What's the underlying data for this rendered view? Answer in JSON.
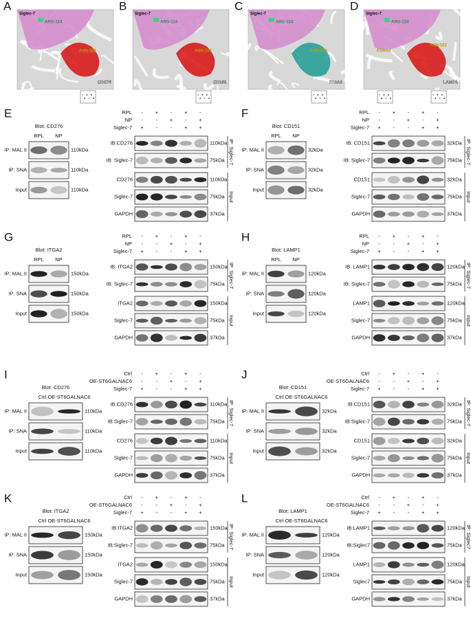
{
  "structures": [
    {
      "letter": "A",
      "receptor": "Siglec-7",
      "residue": "ARG-124",
      "sites": [
        "ASN-322"
      ],
      "ligand": "CD276"
    },
    {
      "letter": "B",
      "receptor": "Siglec-7",
      "residue": "ARG-124",
      "sites": [
        "ASN-159"
      ],
      "ligand": "CD151"
    },
    {
      "letter": "C",
      "receptor": "Siglec-7",
      "residue": "ARG-124",
      "sites": [
        "ASN-343"
      ],
      "ligand": "ITGA2"
    },
    {
      "letter": "D",
      "receptor": "Siglec-7",
      "residue": "ARG-124",
      "sites": [
        "ASN-94",
        "ASN-103"
      ],
      "ligand": "LAMP1"
    }
  ],
  "panels": [
    {
      "letter": "E",
      "blot_title": "Blot: CD276",
      "columns": [
        "RPL",
        "NP"
      ],
      "left_rows": [
        {
          "label": "IP: MAL II",
          "size": "110kDa"
        },
        {
          "label": "IP: SNA",
          "size": "110kDa"
        },
        {
          "label": "Input",
          "size": "110kDa"
        }
      ],
      "conditions": [
        {
          "name": "RPL",
          "signs": [
            "-",
            "+",
            "-",
            "+",
            "-"
          ]
        },
        {
          "name": "NP",
          "signs": [
            "-",
            "-",
            "+",
            "-",
            "+"
          ]
        },
        {
          "name": "Siglec-7",
          "signs": [
            "+",
            "-",
            "-",
            "+",
            "+"
          ]
        }
      ],
      "right_rows": [
        {
          "label": "IB:CD276",
          "size": "110kDa"
        },
        {
          "label": "IB: Siglec-7",
          "size": "75kDa"
        },
        {
          "label": "CD276",
          "size": "110kDa"
        },
        {
          "label": "Siglec-7",
          "size": "75kDa"
        },
        {
          "label": "GAPDH",
          "size": "37kDa"
        }
      ],
      "groups": [
        "IP: Siglec-7",
        "Input"
      ]
    },
    {
      "letter": "F",
      "blot_title": "Blot: CD151",
      "columns": [
        "RPL",
        "NP"
      ],
      "left_rows": [
        {
          "label": "IP: MAL II",
          "size": "32kDa"
        },
        {
          "label": "IP: SNA",
          "size": "32kDa"
        },
        {
          "label": "Input",
          "size": "32kDa"
        }
      ],
      "conditions": [
        {
          "name": "RPL",
          "signs": [
            "-",
            "+",
            "-",
            "+",
            "-"
          ]
        },
        {
          "name": "NP",
          "signs": [
            "-",
            "-",
            "+",
            "-",
            "+"
          ]
        },
        {
          "name": "Siglec-7",
          "signs": [
            "+",
            "-",
            "-",
            "+",
            "+"
          ]
        }
      ],
      "right_rows": [
        {
          "label": "IB: CD151",
          "size": "32kDa"
        },
        {
          "label": "IB: Siglec-7",
          "size": "75kDa"
        },
        {
          "label": "CD151",
          "size": "32kDa"
        },
        {
          "label": "Siglec-7",
          "size": "75kDa"
        },
        {
          "label": "GAPDH",
          "size": "37kDa"
        }
      ],
      "groups": [
        "IP: Siglec-7",
        "Input"
      ]
    },
    {
      "letter": "G",
      "blot_title": "Blot: ITGA2",
      "columns": [
        "RPL",
        "NP"
      ],
      "left_rows": [
        {
          "label": "IP: MAL II",
          "size": "150kDa"
        },
        {
          "label": "IP: SNA",
          "size": "150kDa"
        },
        {
          "label": "Input",
          "size": "150kDa"
        }
      ],
      "conditions": [
        {
          "name": "RPL",
          "signs": [
            "-",
            "+",
            "-",
            "+",
            "-"
          ]
        },
        {
          "name": "NP",
          "signs": [
            "-",
            "-",
            "+",
            "-",
            "+"
          ]
        },
        {
          "name": "Siglec-7",
          "signs": [
            "+",
            "-",
            "-",
            "+",
            "+"
          ]
        }
      ],
      "right_rows": [
        {
          "label": "IB: ITGA2",
          "size": "150kDa"
        },
        {
          "label": "IB: Siglec-7",
          "size": "75kDa"
        },
        {
          "label": "ITGA2",
          "size": "150kDa"
        },
        {
          "label": "Siglec-7",
          "size": "75kDa"
        },
        {
          "label": "GAPDH",
          "size": "37kDa"
        }
      ],
      "groups": [
        "IP: Siglec-7",
        "Input"
      ]
    },
    {
      "letter": "H",
      "blot_title": "Blot: LAMP1",
      "columns": [
        "RPL",
        "NP"
      ],
      "left_rows": [
        {
          "label": "IP: MAL II",
          "size": "120kDa"
        },
        {
          "label": "IP: SNA",
          "size": "120kDa"
        },
        {
          "label": "Input",
          "size": "120kDa"
        }
      ],
      "conditions": [
        {
          "name": "RPL",
          "signs": [
            "-",
            "+",
            "-",
            "+",
            "-"
          ]
        },
        {
          "name": "NP",
          "signs": [
            "-",
            "-",
            "+",
            "-",
            "+"
          ]
        },
        {
          "name": "Siglec-7",
          "signs": [
            "+",
            "-",
            "-",
            "+",
            "+"
          ]
        }
      ],
      "right_rows": [
        {
          "label": "IB: LAMP1",
          "size": "120kDa"
        },
        {
          "label": "IB: Siglec-7",
          "size": "75kDa"
        },
        {
          "label": "LAMP1",
          "size": "120kDa"
        },
        {
          "label": "Siglec-7",
          "size": "75kDa"
        },
        {
          "label": "GAPDH",
          "size": "37kDa"
        }
      ],
      "groups": [
        "IP: Siglec-7",
        "Input"
      ]
    },
    {
      "letter": "I",
      "blot_title": "Blot: CD276",
      "columns": [
        "Ctrl",
        "OE-ST6GALNAC6"
      ],
      "left_rows": [
        {
          "label": "IP: MAL II",
          "size": "110kDa"
        },
        {
          "label": "IP: SNA",
          "size": "110kDa"
        },
        {
          "label": "Input",
          "size": "110kDa"
        }
      ],
      "conditions": [
        {
          "name": "Ctrl",
          "signs": [
            "-",
            "+",
            "-",
            "+",
            "-"
          ]
        },
        {
          "name": "OE-ST6GALNAC6",
          "signs": [
            "-",
            "-",
            "+",
            "-",
            "+"
          ]
        },
        {
          "name": "Siglec-7",
          "signs": [
            "+",
            "-",
            "-",
            "+",
            "+"
          ]
        }
      ],
      "right_rows": [
        {
          "label": "IB:CD276",
          "size": "110kDa"
        },
        {
          "label": "IB:Siglec-7",
          "size": "75kDa"
        },
        {
          "label": "CD276",
          "size": "110kDa"
        },
        {
          "label": "Siglec-7",
          "size": "75kDa"
        },
        {
          "label": "GAPDH",
          "size": "37kDa"
        }
      ],
      "groups": [
        "IP: Siglec-7",
        "Input"
      ]
    },
    {
      "letter": "J",
      "blot_title": "Blot: CD151",
      "columns": [
        "Ctrl",
        "OE-ST6GALNAC6"
      ],
      "left_rows": [
        {
          "label": "IP: MAL II",
          "size": "32kDa"
        },
        {
          "label": "IP: SNA",
          "size": "32kDa"
        },
        {
          "label": "Input",
          "size": "32kDa"
        }
      ],
      "conditions": [
        {
          "name": "Ctrl",
          "signs": [
            "-",
            "+",
            "-",
            "+",
            "-"
          ]
        },
        {
          "name": "OE-ST6GALNAC6",
          "signs": [
            "-",
            "-",
            "+",
            "-",
            "+"
          ]
        },
        {
          "name": "Siglec-7",
          "signs": [
            "+",
            "-",
            "-",
            "+",
            "+"
          ]
        }
      ],
      "right_rows": [
        {
          "label": "IB:CD151",
          "size": "32kDa"
        },
        {
          "label": "IB:Siglec-7",
          "size": "75kDa"
        },
        {
          "label": "CD151",
          "size": "32kDa"
        },
        {
          "label": "Siglec-7",
          "size": "75kDa"
        },
        {
          "label": "GAPDH",
          "size": "37kDa"
        }
      ],
      "groups": [
        "IP: Siglec-7",
        "Input"
      ]
    },
    {
      "letter": "K",
      "blot_title": "Blot: ITGA2",
      "columns": [
        "Ctrl",
        "OE-ST6GALNAC6"
      ],
      "left_rows": [
        {
          "label": "IP: MAL II",
          "size": "150kDa"
        },
        {
          "label": "IP: SNA",
          "size": "150kDa"
        },
        {
          "label": "Input",
          "size": "150kDa"
        }
      ],
      "conditions": [
        {
          "name": "Ctrl",
          "signs": [
            "-",
            "+",
            "-",
            "+",
            "-"
          ]
        },
        {
          "name": "OE-ST6GALNAC6",
          "signs": [
            "-",
            "-",
            "+",
            "-",
            "+"
          ]
        },
        {
          "name": "Siglec-7",
          "signs": [
            "+",
            "-",
            "-",
            "+",
            "+"
          ]
        }
      ],
      "right_rows": [
        {
          "label": "IB:ITGA2",
          "size": "150kDa"
        },
        {
          "label": "IB:Siglec-7",
          "size": "75kDa"
        },
        {
          "label": "ITGA2",
          "size": "150kDa"
        },
        {
          "label": "Siglec-7",
          "size": "75kDa"
        },
        {
          "label": "GAPDH",
          "size": "37kDa"
        }
      ],
      "groups": [
        "IP: Siglec-7",
        "Input"
      ]
    },
    {
      "letter": "L",
      "blot_title": "Blot: LAMP1",
      "columns": [
        "Ctrl",
        "OE-ST6GALNAC6"
      ],
      "left_rows": [
        {
          "label": "IP: MAL II",
          "size": "120kDa"
        },
        {
          "label": "IP: SNA",
          "size": "120kDa"
        },
        {
          "label": "Input",
          "size": "120kDa"
        }
      ],
      "conditions": [
        {
          "name": "Ctrl",
          "signs": [
            "-",
            "+",
            "-",
            "+",
            "-"
          ]
        },
        {
          "name": "OE-ST6GALNAC6",
          "signs": [
            "-",
            "-",
            "+",
            "-",
            "+"
          ]
        },
        {
          "name": "Siglec-7",
          "signs": [
            "+",
            "-",
            "-",
            "+",
            "+"
          ]
        }
      ],
      "right_rows": [
        {
          "label": "IB:LAMP1",
          "size": "120kDa"
        },
        {
          "label": "IB:Siglec7",
          "size": "75kDa"
        },
        {
          "label": "LAMP1",
          "size": "120kDa"
        },
        {
          "label": "Siglec7",
          "size": "75kDa"
        },
        {
          "label": "GAPDH",
          "size": "37kDa"
        }
      ],
      "groups": [
        "IP: Siglec7",
        "Input"
      ]
    }
  ]
}
